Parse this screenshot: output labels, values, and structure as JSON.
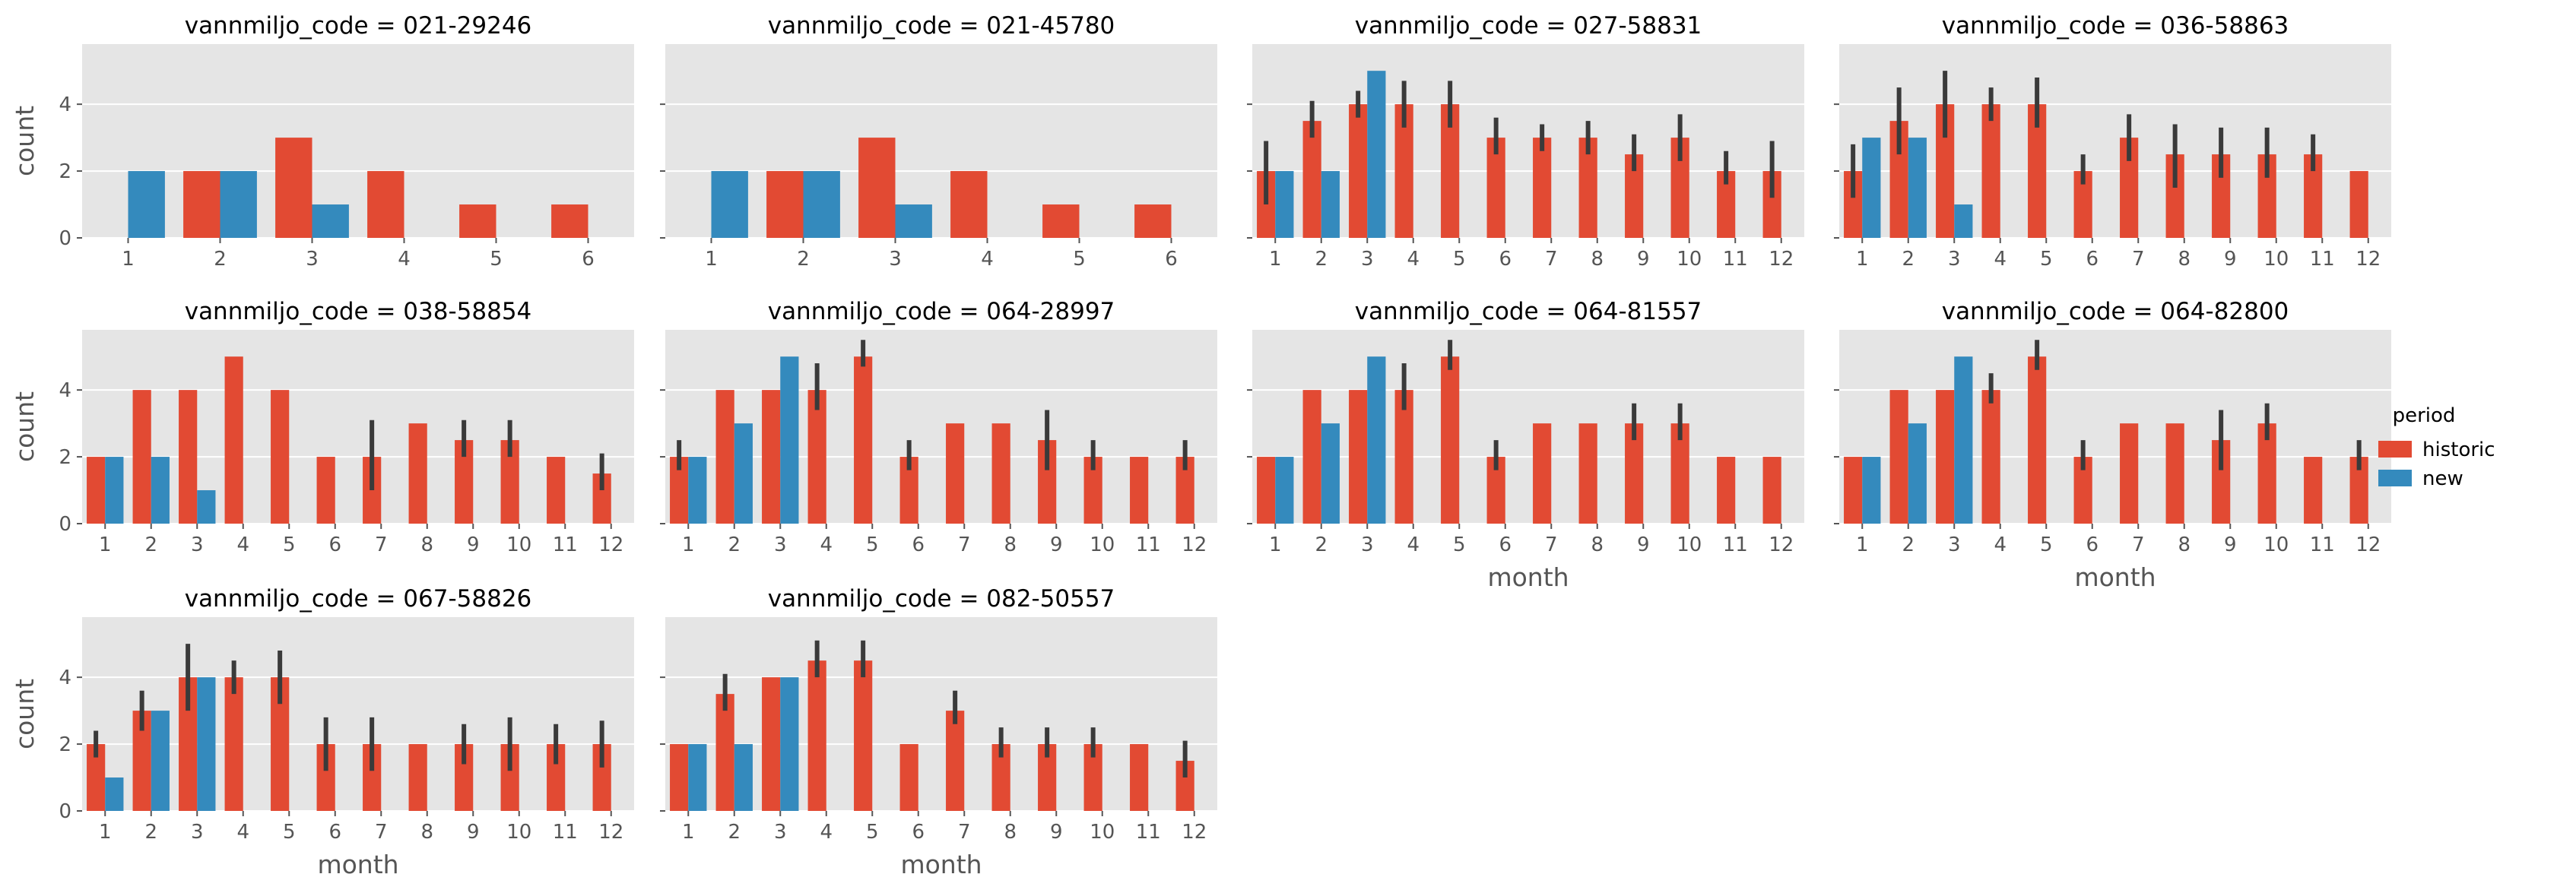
{
  "figure": {
    "legend": {
      "title": "period",
      "entries": [
        "historic",
        "new"
      ],
      "placement": "right"
    },
    "colors": {
      "historic": "#E24A33",
      "new": "#348ABD",
      "panel_bg": "#E5E5E5",
      "grid": "#FFFFFF",
      "error_bar": "#3A3A3A"
    },
    "y_label": "count",
    "x_label": "month",
    "layout": {
      "rows": 3,
      "cols": 4,
      "sharey": true,
      "ylim": [
        0,
        5.8
      ],
      "yticks": [
        0,
        2,
        4
      ]
    }
  },
  "chart_data": [
    {
      "type": "bar",
      "title": "vannmiljo_code = 021-29246",
      "categories": [
        "1",
        "2",
        "3",
        "4",
        "5",
        "6"
      ],
      "series": [
        {
          "name": "historic",
          "values": [
            null,
            2,
            3,
            2,
            1,
            1
          ],
          "err": [
            null,
            null,
            null,
            null,
            null,
            null
          ]
        },
        {
          "name": "new",
          "values": [
            2,
            2,
            1,
            null,
            null,
            null
          ],
          "err": [
            null,
            null,
            null,
            null,
            null,
            null
          ]
        }
      ]
    },
    {
      "type": "bar",
      "title": "vannmiljo_code = 021-45780",
      "categories": [
        "1",
        "2",
        "3",
        "4",
        "5",
        "6"
      ],
      "series": [
        {
          "name": "historic",
          "values": [
            null,
            2,
            3,
            2,
            1,
            1
          ],
          "err": [
            null,
            null,
            null,
            null,
            null,
            null
          ]
        },
        {
          "name": "new",
          "values": [
            2,
            2,
            1,
            null,
            null,
            null
          ],
          "err": [
            null,
            null,
            null,
            null,
            null,
            null
          ]
        }
      ]
    },
    {
      "type": "bar",
      "title": "vannmiljo_code = 027-58831",
      "categories": [
        "1",
        "2",
        "3",
        "4",
        "5",
        "6",
        "7",
        "8",
        "9",
        "10",
        "11",
        "12"
      ],
      "series": [
        {
          "name": "historic",
          "values": [
            2,
            3.5,
            4,
            4,
            4,
            3,
            3,
            3,
            2.5,
            3,
            2,
            2
          ],
          "err": [
            [
              1,
              2.9
            ],
            [
              3,
              4.1
            ],
            [
              3.6,
              4.4
            ],
            [
              3.3,
              4.7
            ],
            [
              3.3,
              4.7
            ],
            [
              2.5,
              3.6
            ],
            [
              2.6,
              3.4
            ],
            [
              2.5,
              3.5
            ],
            [
              2,
              3.1
            ],
            [
              2.3,
              3.7
            ],
            [
              1.6,
              2.6
            ],
            [
              1.2,
              2.9
            ]
          ]
        },
        {
          "name": "new",
          "values": [
            2,
            2,
            5,
            null,
            null,
            null,
            null,
            null,
            null,
            null,
            null,
            null
          ],
          "err": [
            null,
            null,
            null,
            null,
            null,
            null,
            null,
            null,
            null,
            null,
            null,
            null
          ]
        }
      ]
    },
    {
      "type": "bar",
      "title": "vannmiljo_code = 036-58863",
      "categories": [
        "1",
        "2",
        "3",
        "4",
        "5",
        "6",
        "7",
        "8",
        "9",
        "10",
        "11",
        "12"
      ],
      "series": [
        {
          "name": "historic",
          "values": [
            2,
            3.5,
            4,
            4,
            4,
            2,
            3,
            2.5,
            2.5,
            2.5,
            2.5,
            2
          ],
          "err": [
            [
              1.2,
              2.8
            ],
            [
              2.5,
              4.5
            ],
            [
              3,
              5
            ],
            [
              3.5,
              4.5
            ],
            [
              3.3,
              4.8
            ],
            [
              1.6,
              2.5
            ],
            [
              2.3,
              3.7
            ],
            [
              1.5,
              3.4
            ],
            [
              1.8,
              3.3
            ],
            [
              1.8,
              3.3
            ],
            [
              2,
              3.1
            ],
            null
          ]
        },
        {
          "name": "new",
          "values": [
            3,
            3,
            1,
            null,
            null,
            null,
            null,
            null,
            null,
            null,
            null,
            null
          ],
          "err": [
            null,
            null,
            null,
            null,
            null,
            null,
            null,
            null,
            null,
            null,
            null,
            null
          ]
        }
      ]
    },
    {
      "type": "bar",
      "title": "vannmiljo_code = 038-58854",
      "categories": [
        "1",
        "2",
        "3",
        "4",
        "5",
        "6",
        "7",
        "8",
        "9",
        "10",
        "11",
        "12"
      ],
      "series": [
        {
          "name": "historic",
          "values": [
            2,
            4,
            4,
            5,
            4,
            2,
            2,
            3,
            2.5,
            2.5,
            2,
            1.5
          ],
          "err": [
            null,
            null,
            null,
            null,
            null,
            null,
            [
              1,
              3.1
            ],
            null,
            [
              2,
              3.1
            ],
            [
              2,
              3.1
            ],
            null,
            [
              1,
              2.1
            ]
          ]
        },
        {
          "name": "new",
          "values": [
            2,
            2,
            1,
            null,
            null,
            null,
            null,
            null,
            null,
            null,
            null,
            null
          ],
          "err": [
            null,
            null,
            null,
            null,
            null,
            null,
            null,
            null,
            null,
            null,
            null,
            null
          ]
        }
      ]
    },
    {
      "type": "bar",
      "title": "vannmiljo_code = 064-28997",
      "categories": [
        "1",
        "2",
        "3",
        "4",
        "5",
        "6",
        "7",
        "8",
        "9",
        "10",
        "11",
        "12"
      ],
      "series": [
        {
          "name": "historic",
          "values": [
            2,
            4,
            4,
            4,
            5,
            2,
            3,
            3,
            2.5,
            2,
            2,
            2
          ],
          "err": [
            [
              1.6,
              2.5
            ],
            null,
            null,
            [
              3.4,
              4.8
            ],
            [
              4.7,
              5.5
            ],
            [
              1.6,
              2.5
            ],
            null,
            null,
            [
              1.6,
              3.4
            ],
            [
              1.6,
              2.5
            ],
            null,
            [
              1.6,
              2.5
            ]
          ]
        },
        {
          "name": "new",
          "values": [
            2,
            3,
            5,
            null,
            null,
            null,
            null,
            null,
            null,
            null,
            null,
            null
          ],
          "err": [
            null,
            null,
            null,
            null,
            null,
            null,
            null,
            null,
            null,
            null,
            null,
            null
          ]
        }
      ]
    },
    {
      "type": "bar",
      "title": "vannmiljo_code = 064-81557",
      "categories": [
        "1",
        "2",
        "3",
        "4",
        "5",
        "6",
        "7",
        "8",
        "9",
        "10",
        "11",
        "12"
      ],
      "series": [
        {
          "name": "historic",
          "values": [
            2,
            4,
            4,
            4,
            5,
            2,
            3,
            3,
            3,
            3,
            2,
            2
          ],
          "err": [
            null,
            null,
            null,
            [
              3.4,
              4.8
            ],
            [
              4.6,
              5.5
            ],
            [
              1.6,
              2.5
            ],
            null,
            null,
            [
              2.5,
              3.6
            ],
            [
              2.5,
              3.6
            ],
            null,
            null
          ]
        },
        {
          "name": "new",
          "values": [
            2,
            3,
            5,
            null,
            null,
            null,
            null,
            null,
            null,
            null,
            null,
            null
          ],
          "err": [
            null,
            null,
            null,
            null,
            null,
            null,
            null,
            null,
            null,
            null,
            null,
            null
          ]
        }
      ]
    },
    {
      "type": "bar",
      "title": "vannmiljo_code = 064-82800",
      "categories": [
        "1",
        "2",
        "3",
        "4",
        "5",
        "6",
        "7",
        "8",
        "9",
        "10",
        "11",
        "12"
      ],
      "series": [
        {
          "name": "historic",
          "values": [
            2,
            4,
            4,
            4,
            5,
            2,
            3,
            3,
            2.5,
            3,
            2,
            2
          ],
          "err": [
            null,
            null,
            null,
            [
              3.6,
              4.5
            ],
            [
              4.6,
              5.5
            ],
            [
              1.6,
              2.5
            ],
            null,
            null,
            [
              1.6,
              3.4
            ],
            [
              2.5,
              3.6
            ],
            null,
            [
              1.6,
              2.5
            ]
          ]
        },
        {
          "name": "new",
          "values": [
            2,
            3,
            5,
            null,
            null,
            null,
            null,
            null,
            null,
            null,
            null,
            null
          ],
          "err": [
            null,
            null,
            null,
            null,
            null,
            null,
            null,
            null,
            null,
            null,
            null,
            null
          ]
        }
      ]
    },
    {
      "type": "bar",
      "title": "vannmiljo_code = 067-58826",
      "categories": [
        "1",
        "2",
        "3",
        "4",
        "5",
        "6",
        "7",
        "8",
        "9",
        "10",
        "11",
        "12"
      ],
      "series": [
        {
          "name": "historic",
          "values": [
            2,
            3,
            4,
            4,
            4,
            2,
            2,
            2,
            2,
            2,
            2,
            2
          ],
          "err": [
            [
              1.6,
              2.4
            ],
            [
              2.4,
              3.6
            ],
            [
              3,
              5
            ],
            [
              3.5,
              4.5
            ],
            [
              3.2,
              4.8
            ],
            [
              1.2,
              2.8
            ],
            [
              1.2,
              2.8
            ],
            null,
            [
              1.4,
              2.6
            ],
            [
              1.2,
              2.8
            ],
            [
              1.4,
              2.6
            ],
            [
              1.3,
              2.7
            ]
          ]
        },
        {
          "name": "new",
          "values": [
            1,
            3,
            4,
            null,
            null,
            null,
            null,
            null,
            null,
            null,
            null,
            null
          ],
          "err": [
            null,
            null,
            null,
            null,
            null,
            null,
            null,
            null,
            null,
            null,
            null,
            null
          ]
        }
      ]
    },
    {
      "type": "bar",
      "title": "vannmiljo_code = 082-50557",
      "categories": [
        "1",
        "2",
        "3",
        "4",
        "5",
        "6",
        "7",
        "8",
        "9",
        "10",
        "11",
        "12"
      ],
      "series": [
        {
          "name": "historic",
          "values": [
            2,
            3.5,
            4,
            4.5,
            4.5,
            2,
            3,
            2,
            2,
            2,
            2,
            1.5
          ],
          "err": [
            null,
            [
              3,
              4.1
            ],
            null,
            [
              4,
              5.1
            ],
            [
              4,
              5.1
            ],
            null,
            [
              2.6,
              3.6
            ],
            [
              1.6,
              2.5
            ],
            [
              1.6,
              2.5
            ],
            [
              1.6,
              2.5
            ],
            null,
            [
              1,
              2.1
            ]
          ]
        },
        {
          "name": "new",
          "values": [
            2,
            2,
            4,
            null,
            null,
            null,
            null,
            null,
            null,
            null,
            null,
            null
          ],
          "err": [
            null,
            null,
            null,
            null,
            null,
            null,
            null,
            null,
            null,
            null,
            null,
            null
          ]
        }
      ]
    }
  ]
}
